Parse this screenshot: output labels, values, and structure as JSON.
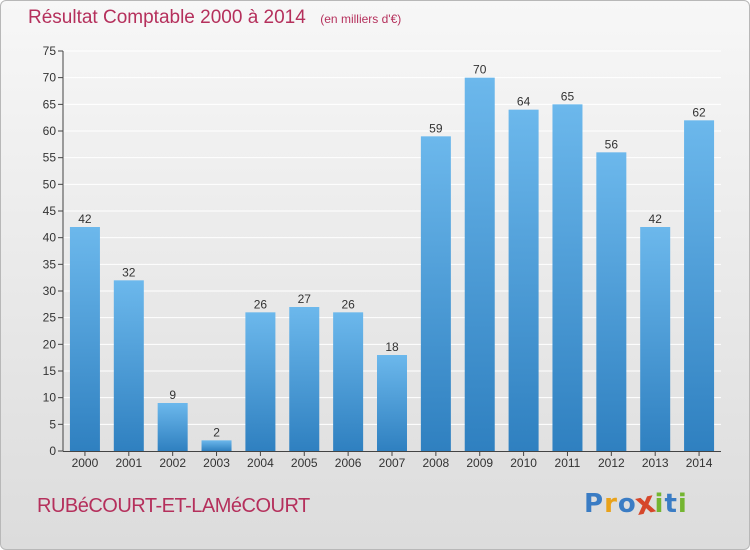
{
  "colors": {
    "title": "#b5305c",
    "bar_light": "#6cb8ec",
    "bar_dark": "#2f80c0",
    "grid": "#ffffff",
    "axis": "#444444"
  },
  "header": {
    "title": "Résultat Comptable 2000 à 2014",
    "subtitle": "(en milliers d'€)"
  },
  "footer": {
    "commune": "RUBéCOURT-ET-LAMéCOURT",
    "brand": "Proxiti",
    "brand_letters": [
      {
        "ch": "P",
        "color": "#3a7cc4"
      },
      {
        "ch": "r",
        "color": "#e9a21a"
      },
      {
        "ch": "o",
        "color": "#3a7cc4"
      },
      {
        "ch": "x",
        "color": "#d6472b"
      },
      {
        "ch": "i",
        "color": "#74b531"
      },
      {
        "ch": "t",
        "color": "#3a7cc4"
      },
      {
        "ch": "i",
        "color": "#74b531"
      }
    ]
  },
  "chart_data": {
    "type": "bar",
    "categories": [
      "2000",
      "2001",
      "2002",
      "2003",
      "2004",
      "2005",
      "2006",
      "2007",
      "2008",
      "2009",
      "2010",
      "2011",
      "2012",
      "2013",
      "2014"
    ],
    "values": [
      42,
      32,
      9,
      2,
      26,
      27,
      26,
      18,
      59,
      70,
      64,
      65,
      56,
      42,
      62
    ],
    "value_labels": [
      "42",
      "32",
      "9",
      "2",
      "26",
      "27",
      "26",
      "18",
      "59",
      "70",
      "64",
      "65",
      "56",
      "42",
      "62"
    ],
    "yticks": [
      "0",
      "5",
      "10",
      "15",
      "20",
      "25",
      "30",
      "35",
      "40",
      "45",
      "50",
      "55",
      "60",
      "65",
      "70",
      "75"
    ],
    "ylim": [
      0,
      75
    ],
    "grid": true
  }
}
